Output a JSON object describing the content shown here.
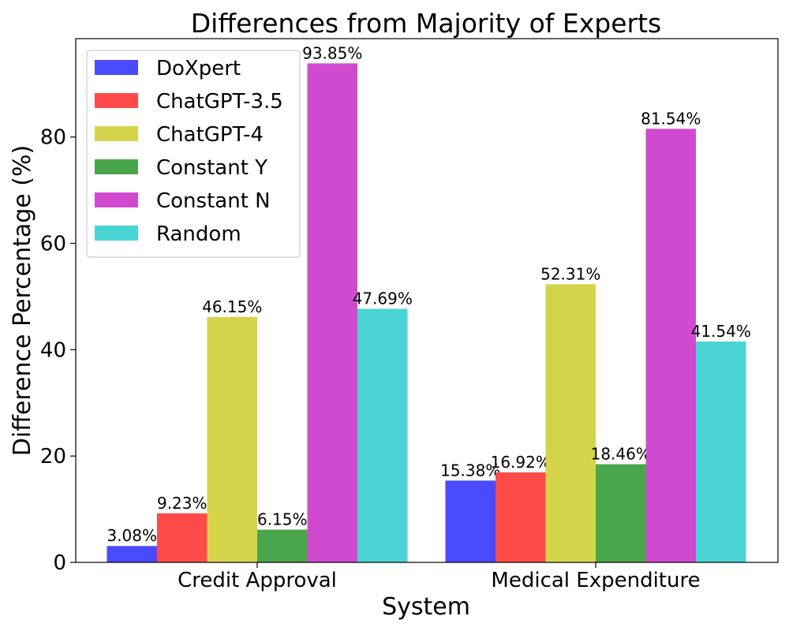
{
  "chart_data": {
    "type": "bar",
    "title": "Differences from Majority of Experts",
    "xlabel": "System",
    "ylabel": "Difference Percentage (%)",
    "categories": [
      "Credit Approval",
      "Medical Expenditure"
    ],
    "series": [
      {
        "name": "DoXpert",
        "color": "#4a4aff",
        "values": [
          3.08,
          15.38
        ],
        "labels": [
          "3.08%",
          "15.38%"
        ]
      },
      {
        "name": "ChatGPT-3.5",
        "color": "#ff4a4a",
        "values": [
          9.23,
          16.92
        ],
        "labels": [
          "9.23%",
          "16.92%"
        ]
      },
      {
        "name": "ChatGPT-4",
        "color": "#d4d44a",
        "values": [
          46.15,
          52.31
        ],
        "labels": [
          "46.15%",
          "52.31%"
        ]
      },
      {
        "name": "Constant Y",
        "color": "#4aa64a",
        "values": [
          6.15,
          18.46
        ],
        "labels": [
          "6.15%",
          "18.46%"
        ]
      },
      {
        "name": "Constant N",
        "color": "#d04ad0",
        "values": [
          93.85,
          81.54
        ],
        "labels": [
          "93.85%",
          "81.54%"
        ]
      },
      {
        "name": "Random",
        "color": "#4ad4d4",
        "values": [
          47.69,
          41.54
        ],
        "labels": [
          "47.69%",
          "41.54%"
        ]
      }
    ],
    "ylim": [
      0,
      98.5
    ],
    "yticks": [
      0,
      20,
      40,
      60,
      80
    ],
    "grid": false,
    "legend_position": "top-left"
  }
}
